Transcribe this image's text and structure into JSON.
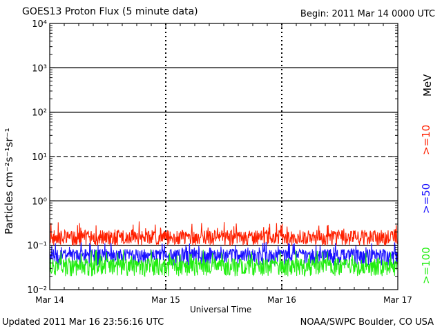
{
  "header": {
    "title": "GOES13 Proton Flux (5 minute data)",
    "begin": "Begin: 2011 Mar 14 0000 UTC"
  },
  "footer": {
    "updated": "Updated 2011 Mar 16 23:56:16 UTC",
    "credit": "NOAA/SWPC Boulder, CO USA"
  },
  "chart_data": {
    "type": "line",
    "title": "GOES13 Proton Flux (5 minute data)",
    "xlabel": "Universal Time",
    "ylabel": "Particles cm⁻²s⁻¹sr⁻¹",
    "yscale": "log",
    "ylim": [
      0.01,
      10000
    ],
    "yticks": [
      "10⁻²",
      "10⁻¹",
      "10⁰",
      "10¹",
      "10²",
      "10³",
      "10⁴"
    ],
    "xticks": [
      "Mar 14",
      "Mar 15",
      "Mar 16",
      "Mar 17"
    ],
    "xlim": [
      "2011-03-14",
      "2011-03-17"
    ],
    "threshold_lines": [
      0.1,
      1,
      10,
      100,
      1000
    ],
    "grid": "dashed vertical day markers",
    "legend": [
      "MeV",
      ">=10",
      ">=50",
      ">=100"
    ],
    "legend_placement": "right, vertical",
    "series": [
      {
        "name": ">=10",
        "color": "#ff2000",
        "typical": 0.15,
        "min": 0.1,
        "max": 0.35
      },
      {
        "name": ">=50",
        "color": "#1a10ff",
        "typical": 0.06,
        "min": 0.035,
        "max": 0.12
      },
      {
        "name": ">=100",
        "color": "#22ee10",
        "typical": 0.035,
        "min": 0.02,
        "max": 0.08
      }
    ]
  },
  "colors": {
    "axis": "#000000",
    "red": "#ff2000",
    "blue": "#1a10ff",
    "green": "#22ee10"
  }
}
